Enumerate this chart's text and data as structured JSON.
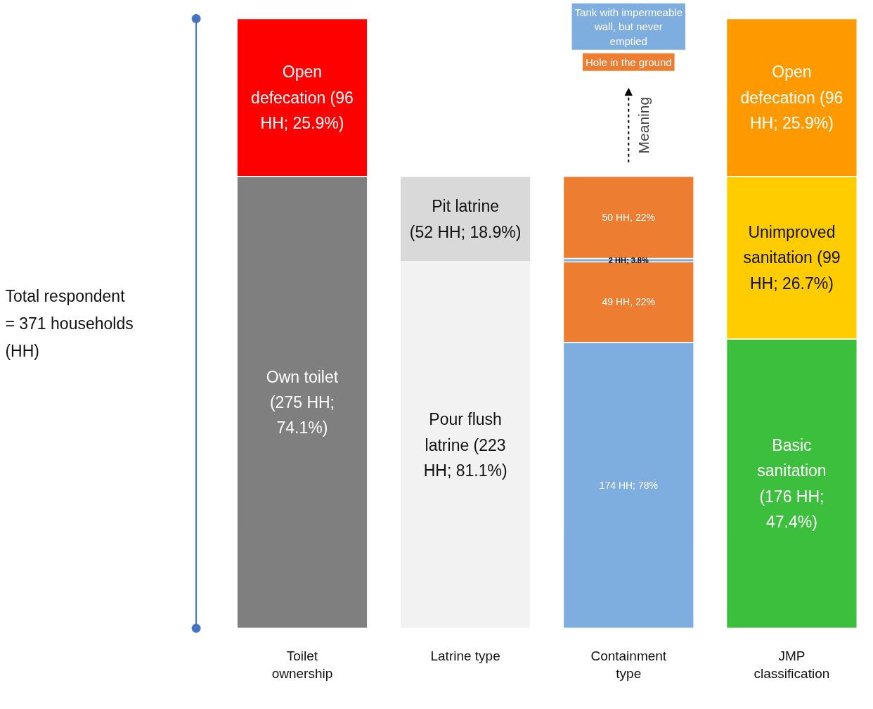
{
  "chart_data": {
    "type": "bar",
    "stacked": true,
    "categories": [
      "Toilet ownership",
      "Latrine type",
      "Containment type",
      "JMP classification"
    ],
    "series": [
      {
        "colors": [
          "#7f7f7f",
          "#f2f2f2",
          "#7eaee0",
          "#3cbf3c"
        ],
        "values": [
          275,
          223,
          174,
          176
        ],
        "value_labels": [
          "Own toilet (275 HH; 74.1%)",
          "Pour flush latrine (223 HH; 81.1%)",
          "174 HH; 78%",
          "Basic sanitation (176 HH; 47.4%)"
        ]
      },
      {
        "colors": [
          "#ff0000",
          "#d9d9d9",
          "#ed7d31",
          "#ffcc00"
        ],
        "values": [
          96,
          52,
          49,
          99
        ],
        "value_labels": [
          "Open defecation (96 HH; 25.9%)",
          "Pit latrine (52 HH; 18.9%)",
          "49 HH, 22%",
          "Unimproved sanitation (99 HH; 26.7%)"
        ]
      },
      {
        "colors": [
          null,
          null,
          "#7eaee0",
          "#ff9900"
        ],
        "values": [
          null,
          null,
          2,
          96
        ],
        "value_labels": [
          null,
          null,
          "2 HH; 3.8%",
          "Open defecation (96 HH; 25.9%)"
        ]
      },
      {
        "colors": [
          null,
          null,
          "#ed7d31",
          null
        ],
        "values": [
          null,
          null,
          50,
          null
        ],
        "value_labels": [
          null,
          null,
          "50 HH, 22%",
          null
        ]
      }
    ],
    "annotations": [
      "Tank with impermeable wall, but never emptied",
      "Hole in the ground",
      "Meaning",
      "Total respondent = 371 households (HH)"
    ],
    "grid": false
  }
}
